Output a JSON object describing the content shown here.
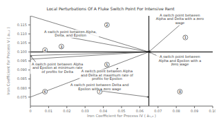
{
  "chart_data": {
    "type": "line",
    "title": "Local Perturbations Of A Fluke Switch Point For Intensive Rent",
    "x_label": "Iron Coefficient for Process IV ( ã₁,₄ )",
    "y_label": "Iron Coefficient for Process V ( a₂,₂ )",
    "xlim": [
      0,
      0.1
    ],
    "ylim": [
      0.07,
      0.12
    ],
    "xticks": [
      0,
      0.01,
      0.02,
      0.03,
      0.04,
      0.05,
      0.06,
      0.07,
      0.08,
      0.09,
      {
        "value": 0.1,
        "label": "0.10"
      }
    ],
    "yticks": [
      0.075,
      {
        "value": 0.08,
        "label": "0.080"
      },
      0.085,
      {
        "value": 0.09,
        "label": "0.090"
      },
      0.095,
      {
        "value": 0.1,
        "label": "0.100"
      },
      0.105,
      {
        "value": 0.11,
        "label": "0.110"
      },
      0.115
    ],
    "grid": false,
    "series": [
      {
        "x": [
          0,
          0.065
        ],
        "values": [
          0.12,
          0.1
        ],
        "color": "gray"
      },
      {
        "x": [
          0,
          0.065
        ],
        "values": [
          0.1,
          0.1
        ],
        "color": "gray"
      },
      {
        "x": [
          0,
          0.065
        ],
        "values": [
          0.098,
          0.1
        ],
        "color": "gray"
      },
      {
        "x": [
          0,
          0.065
        ],
        "values": [
          0.096,
          0.1
        ],
        "color": "gray"
      },
      {
        "x": [
          0,
          0.065
        ],
        "values": [
          0.075,
          0.1
        ],
        "color": "gray"
      },
      {
        "x": [
          0.065,
          0.1
        ],
        "values": [
          0.1,
          0.1
        ],
        "color": "gray"
      }
    ],
    "reference_lines": [
      {
        "x": 0.065,
        "color": "black"
      },
      {
        "y": 0.1,
        "color": "black"
      }
    ],
    "region_labels": [
      {
        "text": "1",
        "x": 0.085,
        "y": 0.108
      },
      {
        "text": "2",
        "x": 0.042,
        "y": 0.115
      },
      {
        "text": "3",
        "x": 0.017,
        "y": 0.103
      },
      {
        "text": "4",
        "x": 0.008,
        "y": 0.101
      },
      {
        "text": "5",
        "x": 0.042,
        "y": 0.093
      },
      {
        "text": "6",
        "x": 0.008,
        "y": 0.078
      },
      {
        "text": "7",
        "x": 0.038,
        "y": 0.078
      },
      {
        "text": "8",
        "x": 0.082,
        "y": 0.078
      }
    ],
    "annotations": [
      {
        "text": "A switch point between Alpha,\nDelta, and Epsilon",
        "x": 0.065,
        "y": 0.1,
        "text_x": 0.022,
        "text_y": 0.108
      },
      {
        "text": "A switch point between\nAlpha and Delta with a zero\nwage",
        "x": 0.065,
        "y": 0.1,
        "text_x": 0.082,
        "text_y": 0.115
      },
      {
        "text": "A switch point between\nAlpha and Epsilon with a\nzero wage",
        "x": 0.065,
        "y": 0.1,
        "text_x": 0.082,
        "text_y": 0.092
      },
      {
        "text": "A switch point between Alpha\nand Epsilon at minimum rate\nof profits for Delta",
        "x": 0.0,
        "y": 0.098,
        "text_x": 0.008,
        "text_y": 0.088
      },
      {
        "text": "A switch point between Alpha\nand Delta at maximum rate of\nprofits for Epsilon",
        "x": 0.048,
        "y": 0.091,
        "text_x": 0.042,
        "text_y": 0.084
      },
      {
        "text": "A switch point between Delta and\nEpsilon with a zero wage",
        "x": 0.065,
        "y": 0.075,
        "text_x": 0.038,
        "text_y": 0.0785
      }
    ]
  }
}
